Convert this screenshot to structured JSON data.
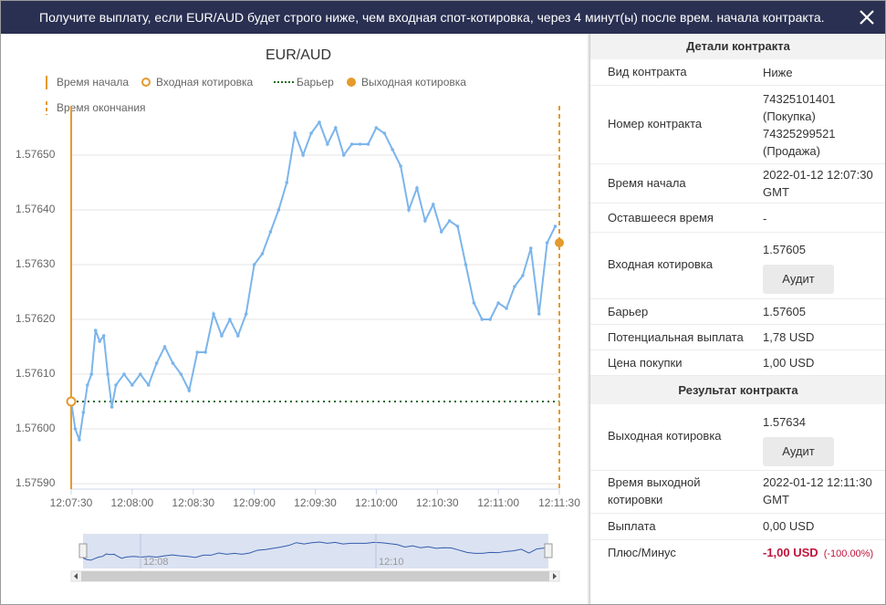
{
  "header": {
    "title": "Получите выплату, если EUR/AUD будет строго ниже, чем входная спот-котировка, через 4 минут(ы) после врем. начала контракта."
  },
  "chart_data": {
    "type": "line",
    "title": "EUR/AUD",
    "color": "#7cb5ec",
    "legend": {
      "start": "Время начала",
      "entry": "Входная котировка",
      "barrier": "Барьер",
      "exit": "Выходная котировка",
      "end": "Время окончания"
    },
    "x": [
      "12:07:30",
      "12:07:32",
      "12:07:34",
      "12:07:36",
      "12:07:38",
      "12:07:40",
      "12:07:42",
      "12:07:44",
      "12:07:46",
      "12:07:48",
      "12:07:50",
      "12:07:52",
      "12:07:56",
      "12:08:00",
      "12:08:04",
      "12:08:08",
      "12:08:12",
      "12:08:16",
      "12:08:20",
      "12:08:24",
      "12:08:28",
      "12:08:32",
      "12:08:36",
      "12:08:40",
      "12:08:44",
      "12:08:48",
      "12:08:52",
      "12:08:56",
      "12:09:00",
      "12:09:04",
      "12:09:08",
      "12:09:12",
      "12:09:16",
      "12:09:20",
      "12:09:24",
      "12:09:28",
      "12:09:32",
      "12:09:36",
      "12:09:40",
      "12:09:44",
      "12:09:48",
      "12:09:52",
      "12:09:56",
      "12:10:00",
      "12:10:04",
      "12:10:08",
      "12:10:12",
      "12:10:16",
      "12:10:20",
      "12:10:24",
      "12:10:28",
      "12:10:32",
      "12:10:36",
      "12:10:40",
      "12:10:44",
      "12:10:48",
      "12:10:52",
      "12:10:56",
      "12:11:00",
      "12:11:04",
      "12:11:08",
      "12:11:12",
      "12:11:16",
      "12:11:20",
      "12:11:24",
      "12:11:28"
    ],
    "values": [
      1.57605,
      1.576,
      1.57598,
      1.57603,
      1.57608,
      1.5761,
      1.57618,
      1.57616,
      1.57617,
      1.5761,
      1.57604,
      1.57608,
      1.5761,
      1.57608,
      1.5761,
      1.57608,
      1.57612,
      1.57615,
      1.57612,
      1.5761,
      1.57607,
      1.57614,
      1.57614,
      1.57621,
      1.57617,
      1.5762,
      1.57617,
      1.57621,
      1.5763,
      1.57632,
      1.57636,
      1.5764,
      1.57645,
      1.57654,
      1.5765,
      1.57654,
      1.57656,
      1.57652,
      1.57655,
      1.5765,
      1.57652,
      1.57652,
      1.57652,
      1.57655,
      1.57654,
      1.57651,
      1.57648,
      1.5764,
      1.57644,
      1.57638,
      1.57641,
      1.57636,
      1.57638,
      1.57637,
      1.5763,
      1.57623,
      1.5762,
      1.5762,
      1.57623,
      1.57622,
      1.57626,
      1.57628,
      1.57633,
      1.57621,
      1.57634,
      1.57637
    ],
    "start_time": "12:07:30",
    "end_time": "12:11:30",
    "entry_spot": 1.57605,
    "barrier": 1.57605,
    "exit_spot": 1.57634,
    "xlim": [
      "12:07:30",
      "12:11:30"
    ],
    "ylim": [
      1.57589,
      1.57659
    ],
    "xticks": [
      "12:07:30",
      "12:08:00",
      "12:08:30",
      "12:09:00",
      "12:09:30",
      "12:10:00",
      "12:10:30",
      "12:11:00",
      "12:11:30"
    ],
    "yticks": [
      {
        "value": 1.5759,
        "label": "1.57590"
      },
      {
        "value": 1.576,
        "label": "1.57600"
      },
      {
        "value": 1.5761,
        "label": "1.57610"
      },
      {
        "value": 1.5762,
        "label": "1.57620"
      },
      {
        "value": 1.5763,
        "label": "1.57630"
      },
      {
        "value": 1.5764,
        "label": "1.57640"
      },
      {
        "value": 1.5765,
        "label": "1.57650"
      }
    ],
    "grid": true,
    "navigator": {
      "labels": [
        "12:08",
        "12:10"
      ]
    }
  },
  "details": {
    "title": "Детали контракта",
    "rows": [
      {
        "label": "Вид контракта",
        "value": "Ниже"
      },
      {
        "label": "Номер контракта",
        "value": [
          "74325101401",
          "(Покупка)",
          "74325299521",
          "(Продажа)"
        ]
      },
      {
        "label": "Время начала",
        "value": [
          "2022-01-12 12:07:30",
          "GMT"
        ]
      },
      {
        "label": "Оставшееся время",
        "value": "-"
      },
      {
        "label": "Входная котировка",
        "value": "1.57605",
        "button": "Аудит"
      },
      {
        "label": "Барьер",
        "value": "1.57605"
      },
      {
        "label": "Потенциальная выплата",
        "value": "1,78 USD"
      },
      {
        "label": "Цена покупки",
        "value": "1,00 USD"
      }
    ]
  },
  "result": {
    "title": "Результат контракта",
    "rows": [
      {
        "label": "Выходная котировка",
        "value": "1.57634",
        "button": "Аудит"
      },
      {
        "label": [
          "Время выходной",
          "котировки"
        ],
        "value": [
          "2022-01-12 12:11:30",
          "GMT"
        ]
      },
      {
        "label": "Выплата",
        "value": "0,00 USD"
      },
      {
        "label": "Плюс/Минус",
        "value": "-1,00 USD",
        "percent": "(-100.00%)"
      }
    ]
  }
}
